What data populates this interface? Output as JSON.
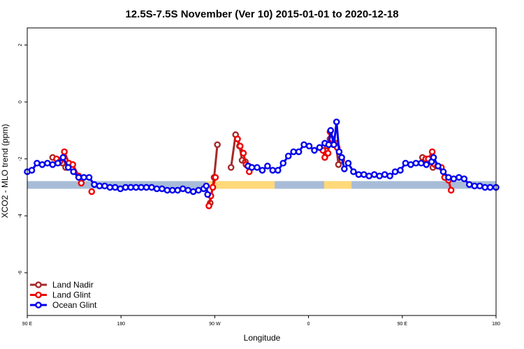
{
  "chart_data": {
    "type": "line",
    "title": "12.5S-7.5S November (Ver 10)   2015-01-01 to 2020-12-18",
    "xlabel": "Longitude",
    "ylabel": "XCO2 - MLO trend (ppm)",
    "xlim": [
      -180,
      180
    ],
    "ylim": [
      -7.5,
      2.6
    ],
    "x_ticks": [
      {
        "value": -180,
        "label": "90 E"
      },
      {
        "value": -108,
        "label": "180"
      },
      {
        "value": -36,
        "label": "90 W"
      },
      {
        "value": 36,
        "label": "0"
      },
      {
        "value": 108,
        "label": "90 E"
      },
      {
        "value": 180,
        "label": "180"
      }
    ],
    "y_ticks": [
      -6,
      -4,
      -2,
      0,
      2
    ],
    "land_mask_band": {
      "y_range": [
        -3.05,
        -2.78
      ],
      "ocean_color": "#a8bcd8",
      "land_color": "#ffd97a",
      "land_segments": [
        [
          -43,
          10
        ],
        [
          48,
          69
        ]
      ]
    },
    "legend": {
      "position": "bottom-left"
    },
    "series": [
      {
        "name": "Land Nadir",
        "color": "#a52a2a",
        "segments": [
          {
            "x": [
              -160.5,
              -156,
              -153,
              -150.5
            ],
            "y": [
              -1.95,
              -2.05,
              -2.15,
              -2.3
            ]
          },
          {
            "x": [
              -39.5,
              -36.5,
              -34
            ],
            "y": [
              -3.55,
              -2.65,
              -1.5
            ]
          },
          {
            "x": [
              -23.5,
              -20,
              -17,
              -15,
              -12.5,
              -10
            ],
            "y": [
              -2.3,
              -1.15,
              -1.55,
              -2.05,
              -2.1,
              -2.25
            ]
          },
          {
            "x": [
              50.5,
              52.5,
              55,
              57,
              59,
              61.5
            ],
            "y": [
              -1.55,
              -1.3,
              -1.5,
              -1.45,
              -2.2,
              -2.05
            ]
          },
          {
            "x": [
              123.5,
              126,
              129,
              131.5
            ],
            "y": [
              -1.95,
              -2.05,
              -2.1,
              -2.3
            ]
          }
        ]
      },
      {
        "name": "Land Glint",
        "color": "#ee0000",
        "segments": [
          {
            "x": [
              -157.5,
              -155,
              -151.5,
              -148,
              -145,
              -140.5,
              -138.5
            ],
            "y": [
              -2.0,
              -2.1,
              -1.75,
              -2.15,
              -2.2,
              -2.6,
              -2.85
            ]
          },
          {
            "x": [
              -130.5
            ],
            "y": [
              -3.15
            ]
          },
          {
            "x": [
              -40.5,
              -39,
              -37.5,
              -35.5
            ],
            "y": [
              -3.65,
              -3.3,
              -3.0,
              -2.65
            ]
          },
          {
            "x": [
              -18.5,
              -16.5,
              -14,
              -12,
              -9.5
            ],
            "y": [
              -1.3,
              -1.55,
              -1.8,
              -2.2,
              -2.45
            ]
          },
          {
            "x": [
              47,
              48.5,
              51,
              52.5,
              54,
              56,
              58
            ],
            "y": [
              -1.7,
              -1.95,
              -1.8,
              -1.05,
              -1.3,
              -1.5,
              -1.6
            ]
          },
          {
            "x": [
              126,
              128,
              131,
              133,
              135,
              138,
              140.5,
              143.5,
              145.5
            ],
            "y": [
              -2.0,
              -2.0,
              -1.75,
              -2.2,
              -2.25,
              -2.3,
              -2.65,
              -2.75,
              -3.1
            ]
          }
        ]
      },
      {
        "name": "Ocean Glint",
        "color": "#0000ee",
        "segments": [
          {
            "x": [
              -180,
              -176.5,
              -172.5,
              -168.5,
              -164.5,
              -160.5,
              -156.5,
              -152.5,
              -148.5,
              -144.5,
              -140.5,
              -136.5,
              -132.5,
              -128.5,
              -124.5,
              -120.5,
              -116.5,
              -112.5,
              -108.5,
              -104.5,
              -100.5,
              -96.5,
              -92.5,
              -88.5,
              -84.5,
              -80.5,
              -76.5,
              -72.5,
              -68.5,
              -64.5,
              -60.5,
              -56.5,
              -52.5,
              -48.5,
              -44.5,
              -42.5,
              -41.5
            ],
            "y": [
              -2.45,
              -2.4,
              -2.15,
              -2.2,
              -2.15,
              -2.2,
              -2.15,
              -1.95,
              -2.3,
              -2.45,
              -2.65,
              -2.65,
              -2.65,
              -2.9,
              -2.95,
              -2.95,
              -3.0,
              -3.0,
              -3.05,
              -3.0,
              -3.0,
              -3.0,
              -3.0,
              -3.0,
              -3.0,
              -3.05,
              -3.05,
              -3.1,
              -3.1,
              -3.1,
              -3.05,
              -3.1,
              -3.15,
              -3.1,
              -3.05,
              -2.95,
              -3.25
            ]
          },
          {
            "x": [
              -10.5,
              -7.5,
              -3.5,
              0.5,
              4.5,
              8.5,
              12.5,
              16.5,
              20.5,
              24.5,
              28.5,
              32.5,
              36.5,
              40.5,
              44.5,
              48.5,
              51.5,
              53,
              55.5,
              57.5,
              59.5,
              61.5,
              63.5,
              66.5,
              70.5,
              74.5,
              78.5,
              82.5,
              86.5,
              90.5,
              94.5,
              98.5,
              102.5,
              106.5,
              110.5,
              114.5,
              118.5,
              122.5,
              126.5,
              130.5,
              132,
              135.5,
              139.5,
              143.5,
              147.5,
              151.5,
              155.5,
              159.5,
              163.5,
              167.5,
              171.5,
              175.5,
              180
            ],
            "y": [
              -2.25,
              -2.3,
              -2.3,
              -2.4,
              -2.25,
              -2.4,
              -2.4,
              -2.15,
              -1.9,
              -1.75,
              -1.75,
              -1.5,
              -1.55,
              -1.7,
              -1.6,
              -1.45,
              -1.5,
              -1.0,
              -1.5,
              -0.7,
              -1.75,
              -1.95,
              -2.35,
              -2.15,
              -2.45,
              -2.55,
              -2.55,
              -2.6,
              -2.55,
              -2.6,
              -2.55,
              -2.6,
              -2.45,
              -2.4,
              -2.15,
              -2.2,
              -2.15,
              -2.15,
              -2.2,
              -2.1,
              -1.95,
              -2.25,
              -2.45,
              -2.65,
              -2.7,
              -2.65,
              -2.7,
              -2.9,
              -2.95,
              -2.95,
              -3.0,
              -3.0,
              -3.0
            ]
          }
        ]
      }
    ]
  }
}
